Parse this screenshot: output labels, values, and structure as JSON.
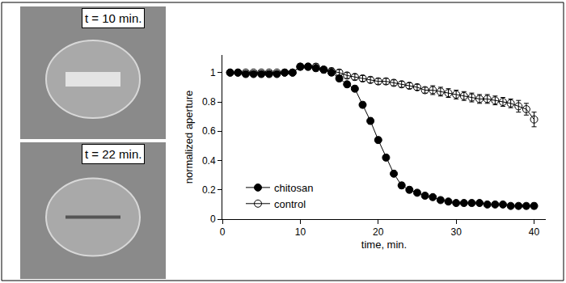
{
  "chart_data": {
    "type": "line",
    "annotations": [
      "t = 10 min.",
      "t = 22 min."
    ],
    "x_label": "time, min.",
    "y_label": "normalized aperture",
    "x": [
      1,
      2,
      3,
      4,
      5,
      6,
      7,
      8,
      9,
      10,
      11,
      12,
      13,
      14,
      15,
      16,
      17,
      18,
      19,
      20,
      21,
      22,
      23,
      24,
      25,
      26,
      27,
      28,
      29,
      30,
      31,
      32,
      33,
      34,
      35,
      36,
      37,
      38,
      39,
      40
    ],
    "series": [
      {
        "name": "chitosan",
        "color": "#000000",
        "marker": "circle",
        "line_style": "solid",
        "values": [
          1.0,
          1.0,
          0.99,
          0.99,
          0.99,
          0.99,
          0.99,
          1.0,
          1.0,
          1.04,
          1.04,
          1.03,
          1.02,
          1.0,
          0.96,
          0.92,
          0.89,
          0.78,
          0.67,
          0.54,
          0.42,
          0.31,
          0.23,
          0.2,
          0.18,
          0.16,
          0.15,
          0.13,
          0.12,
          0.11,
          0.11,
          0.11,
          0.11,
          0.1,
          0.1,
          0.1,
          0.09,
          0.09,
          0.09,
          0.09
        ],
        "error": [
          0.01,
          0.01,
          0.01,
          0.01,
          0.01,
          0.01,
          0.01,
          0.01,
          0.01,
          0.02,
          0.02,
          0.02,
          0.02,
          0.02,
          0.02,
          0.02,
          0.02,
          0.02,
          0.02,
          0.02,
          0.02,
          0.02,
          0.02,
          0.02,
          0.01,
          0.01,
          0.01,
          0.01,
          0.01,
          0.01,
          0.01,
          0.01,
          0.01,
          0.01,
          0.01,
          0.01,
          0.01,
          0.01,
          0.01,
          0.02
        ]
      },
      {
        "name": "control",
        "color": "#000000",
        "marker": "circle-open",
        "line_style": "solid",
        "values": [
          1.0,
          1.0,
          1.0,
          1.0,
          1.0,
          1.0,
          1.0,
          1.0,
          1.0,
          1.04,
          1.04,
          1.04,
          1.02,
          1.01,
          1.0,
          0.98,
          0.97,
          0.96,
          0.95,
          0.94,
          0.94,
          0.93,
          0.92,
          0.91,
          0.9,
          0.88,
          0.88,
          0.87,
          0.86,
          0.85,
          0.84,
          0.83,
          0.82,
          0.82,
          0.81,
          0.8,
          0.79,
          0.77,
          0.75,
          0.68
        ],
        "error": [
          0.01,
          0.01,
          0.01,
          0.01,
          0.01,
          0.01,
          0.01,
          0.01,
          0.01,
          0.02,
          0.02,
          0.02,
          0.02,
          0.02,
          0.02,
          0.02,
          0.02,
          0.02,
          0.02,
          0.02,
          0.02,
          0.02,
          0.02,
          0.02,
          0.02,
          0.02,
          0.03,
          0.03,
          0.03,
          0.03,
          0.03,
          0.03,
          0.03,
          0.03,
          0.03,
          0.03,
          0.03,
          0.04,
          0.04,
          0.05
        ]
      }
    ],
    "xlim": [
      0,
      41.5
    ],
    "xticks": [
      0,
      10,
      20,
      30,
      40
    ],
    "ylim": [
      0,
      1.12
    ],
    "yticks": [
      0,
      0.2,
      0.4,
      0.6,
      0.8,
      1
    ],
    "grid": false,
    "legend": "lower left"
  }
}
